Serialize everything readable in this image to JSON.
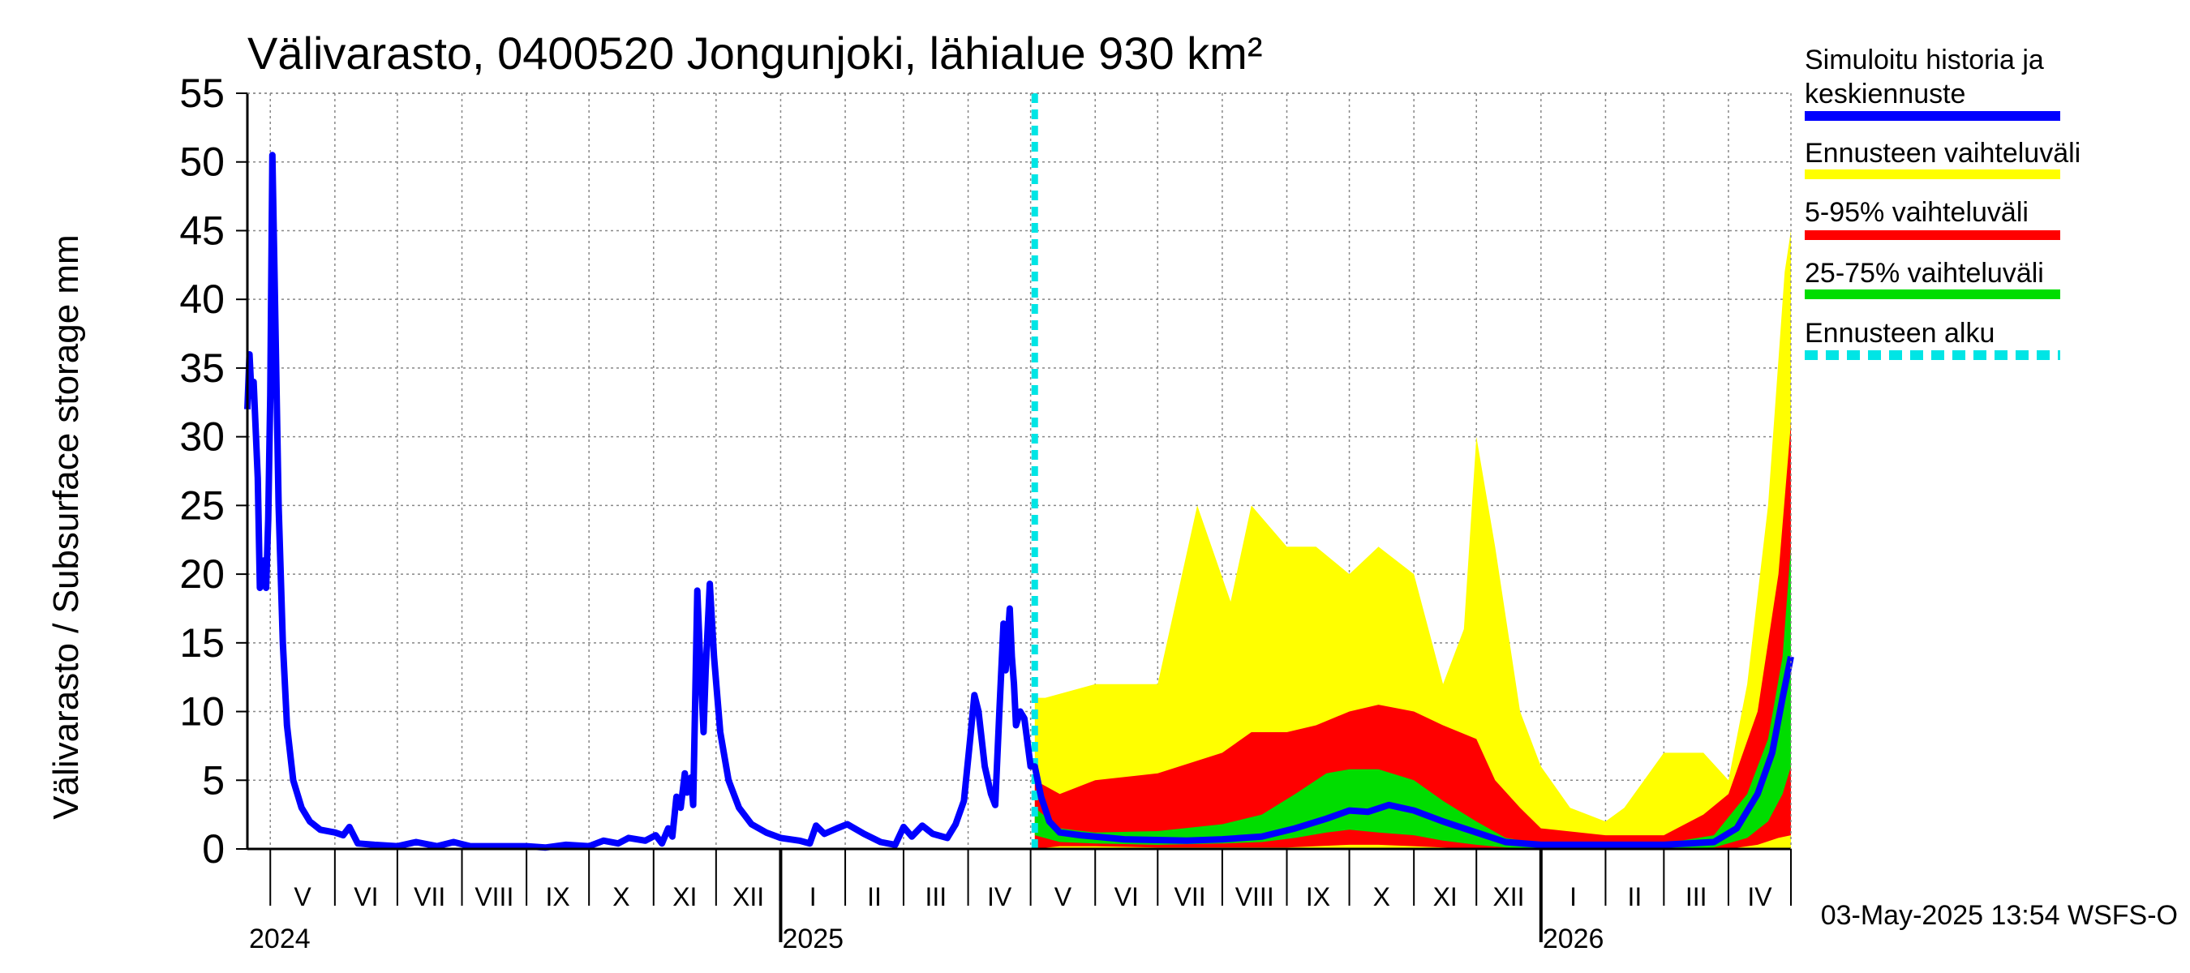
{
  "chart_data": {
    "type": "area",
    "title": "Välivarasto, 0400520 Jongunjoki, lähialue 930 km²",
    "ylabel": "Välivarasto / Subsurface storage  mm",
    "ylim": [
      0,
      55
    ],
    "yticks": [
      0,
      5,
      10,
      15,
      20,
      25,
      30,
      35,
      40,
      45,
      50,
      55
    ],
    "grid": true,
    "legend_position": "right",
    "x_start": "2024-04-20",
    "x_end": "2026-05-01",
    "forecast_start": "2025-05-03",
    "month_labels": [
      {
        "label": "V",
        "start": "2024-05-01"
      },
      {
        "label": "VI",
        "start": "2024-06-01"
      },
      {
        "label": "VII",
        "start": "2024-07-01"
      },
      {
        "label": "VIII",
        "start": "2024-08-01"
      },
      {
        "label": "IX",
        "start": "2024-09-01"
      },
      {
        "label": "X",
        "start": "2024-10-01"
      },
      {
        "label": "XI",
        "start": "2024-11-01"
      },
      {
        "label": "XII",
        "start": "2024-12-01"
      },
      {
        "label": "I",
        "start": "2025-01-01"
      },
      {
        "label": "II",
        "start": "2025-02-01"
      },
      {
        "label": "III",
        "start": "2025-03-01"
      },
      {
        "label": "IV",
        "start": "2025-04-01"
      },
      {
        "label": "V",
        "start": "2025-05-01"
      },
      {
        "label": "VI",
        "start": "2025-06-01"
      },
      {
        "label": "VII",
        "start": "2025-07-01"
      },
      {
        "label": "VIII",
        "start": "2025-08-01"
      },
      {
        "label": "IX",
        "start": "2025-09-01"
      },
      {
        "label": "X",
        "start": "2025-10-01"
      },
      {
        "label": "XI",
        "start": "2025-11-01"
      },
      {
        "label": "XII",
        "start": "2025-12-01"
      },
      {
        "label": "I",
        "start": "2026-01-01"
      },
      {
        "label": "II",
        "start": "2026-02-01"
      },
      {
        "label": "III",
        "start": "2026-03-01"
      },
      {
        "label": "IV",
        "start": "2026-04-01"
      }
    ],
    "year_labels": [
      {
        "label": "2024",
        "date": "2024-04-20"
      },
      {
        "label": "2025",
        "date": "2025-01-01"
      },
      {
        "label": "2026",
        "date": "2026-01-01"
      }
    ],
    "series": [
      {
        "name": "Simuloitu historia ja keskiennuste",
        "color": "#0000ff",
        "points": [
          [
            "2024-04-20",
            32
          ],
          [
            "2024-04-21",
            36
          ],
          [
            "2024-04-22",
            33
          ],
          [
            "2024-04-23",
            34
          ],
          [
            "2024-04-25",
            27
          ],
          [
            "2024-04-26",
            19
          ],
          [
            "2024-04-28",
            21
          ],
          [
            "2024-04-29",
            19
          ],
          [
            "2024-04-30",
            24
          ],
          [
            "2024-05-01",
            33
          ],
          [
            "2024-05-02",
            50.5
          ],
          [
            "2024-05-03",
            42
          ],
          [
            "2024-05-05",
            25
          ],
          [
            "2024-05-07",
            15
          ],
          [
            "2024-05-09",
            9
          ],
          [
            "2024-05-12",
            5
          ],
          [
            "2024-05-16",
            3
          ],
          [
            "2024-05-20",
            2
          ],
          [
            "2024-05-25",
            1.4
          ],
          [
            "2024-06-01",
            1.2
          ],
          [
            "2024-06-05",
            1
          ],
          [
            "2024-06-08",
            1.6
          ],
          [
            "2024-06-12",
            0.4
          ],
          [
            "2024-06-20",
            0.3
          ],
          [
            "2024-07-01",
            0.2
          ],
          [
            "2024-07-10",
            0.5
          ],
          [
            "2024-07-20",
            0.2
          ],
          [
            "2024-07-28",
            0.5
          ],
          [
            "2024-08-05",
            0.2
          ],
          [
            "2024-08-20",
            0.2
          ],
          [
            "2024-09-01",
            0.2
          ],
          [
            "2024-09-10",
            0.1
          ],
          [
            "2024-09-20",
            0.3
          ],
          [
            "2024-10-01",
            0.2
          ],
          [
            "2024-10-08",
            0.6
          ],
          [
            "2024-10-15",
            0.4
          ],
          [
            "2024-10-20",
            0.8
          ],
          [
            "2024-10-28",
            0.6
          ],
          [
            "2024-11-02",
            1
          ],
          [
            "2024-11-05",
            0.4
          ],
          [
            "2024-11-08",
            1.5
          ],
          [
            "2024-11-10",
            0.9
          ],
          [
            "2024-11-12",
            3.8
          ],
          [
            "2024-11-14",
            3
          ],
          [
            "2024-11-16",
            5.5
          ],
          [
            "2024-11-17",
            4.1
          ],
          [
            "2024-11-19",
            5.2
          ],
          [
            "2024-11-20",
            3.2
          ],
          [
            "2024-11-22",
            18.8
          ],
          [
            "2024-11-23",
            15
          ],
          [
            "2024-11-25",
            8.5
          ],
          [
            "2024-11-26",
            13
          ],
          [
            "2024-11-28",
            19.3
          ],
          [
            "2024-11-30",
            14
          ],
          [
            "2024-12-03",
            8.5
          ],
          [
            "2024-12-07",
            5
          ],
          [
            "2024-12-12",
            3
          ],
          [
            "2024-12-18",
            1.8
          ],
          [
            "2024-12-25",
            1.2
          ],
          [
            "2025-01-01",
            0.8
          ],
          [
            "2025-01-10",
            0.6
          ],
          [
            "2025-01-15",
            0.4
          ],
          [
            "2025-01-18",
            1.7
          ],
          [
            "2025-01-22",
            1.1
          ],
          [
            "2025-01-28",
            1.5
          ],
          [
            "2025-02-02",
            1.8
          ],
          [
            "2025-02-10",
            1.1
          ],
          [
            "2025-02-18",
            0.5
          ],
          [
            "2025-02-25",
            0.3
          ],
          [
            "2025-03-01",
            1.6
          ],
          [
            "2025-03-05",
            0.9
          ],
          [
            "2025-03-10",
            1.7
          ],
          [
            "2025-03-15",
            1.1
          ],
          [
            "2025-03-22",
            0.8
          ],
          [
            "2025-03-26",
            1.8
          ],
          [
            "2025-03-30",
            3.5
          ],
          [
            "2025-04-02",
            8
          ],
          [
            "2025-04-04",
            11.2
          ],
          [
            "2025-04-06",
            10
          ],
          [
            "2025-04-09",
            6
          ],
          [
            "2025-04-12",
            4
          ],
          [
            "2025-04-14",
            3.2
          ],
          [
            "2025-04-16",
            10
          ],
          [
            "2025-04-18",
            16.4
          ],
          [
            "2025-04-19",
            13
          ],
          [
            "2025-04-21",
            17.5
          ],
          [
            "2025-04-22",
            14
          ],
          [
            "2025-04-23",
            12
          ],
          [
            "2025-04-24",
            9
          ],
          [
            "2025-04-26",
            10
          ],
          [
            "2025-04-28",
            9.5
          ],
          [
            "2025-05-01",
            6
          ],
          [
            "2025-05-03",
            6
          ],
          [
            "2025-05-06",
            3.8
          ],
          [
            "2025-05-10",
            2
          ],
          [
            "2025-05-15",
            1.2
          ],
          [
            "2025-05-25",
            1
          ],
          [
            "2025-06-15",
            0.7
          ],
          [
            "2025-07-15",
            0.6
          ],
          [
            "2025-08-01",
            0.7
          ],
          [
            "2025-08-20",
            0.9
          ],
          [
            "2025-09-05",
            1.5
          ],
          [
            "2025-09-20",
            2.2
          ],
          [
            "2025-10-01",
            2.8
          ],
          [
            "2025-10-10",
            2.7
          ],
          [
            "2025-10-20",
            3.2
          ],
          [
            "2025-11-01",
            2.8
          ],
          [
            "2025-11-15",
            2
          ],
          [
            "2025-12-01",
            1.2
          ],
          [
            "2025-12-15",
            0.5
          ],
          [
            "2026-01-01",
            0.3
          ],
          [
            "2026-02-01",
            0.3
          ],
          [
            "2026-03-01",
            0.3
          ],
          [
            "2026-03-25",
            0.5
          ],
          [
            "2026-04-05",
            1.5
          ],
          [
            "2026-04-15",
            4
          ],
          [
            "2026-04-22",
            7
          ],
          [
            "2026-04-27",
            11
          ],
          [
            "2026-05-01",
            14
          ]
        ]
      },
      {
        "name": "Ennusteen vaihteluväli",
        "color": "#ffff00",
        "band": [
          [
            "2025-05-03",
            0,
            11
          ],
          [
            "2025-05-08",
            0,
            11
          ],
          [
            "2025-06-01",
            0,
            12
          ],
          [
            "2025-07-01",
            0,
            12
          ],
          [
            "2025-07-20",
            0,
            25
          ],
          [
            "2025-08-05",
            0,
            18
          ],
          [
            "2025-08-15",
            0,
            25
          ],
          [
            "2025-09-01",
            0,
            22
          ],
          [
            "2025-09-15",
            0,
            22
          ],
          [
            "2025-10-01",
            0,
            20
          ],
          [
            "2025-10-15",
            0,
            22
          ],
          [
            "2025-11-01",
            0,
            20
          ],
          [
            "2025-11-15",
            0,
            12
          ],
          [
            "2025-11-25",
            0,
            16
          ],
          [
            "2025-12-01",
            0,
            30
          ],
          [
            "2025-12-10",
            0,
            22
          ],
          [
            "2025-12-22",
            0,
            10
          ],
          [
            "2026-01-01",
            0,
            6
          ],
          [
            "2026-01-15",
            0,
            3
          ],
          [
            "2026-02-01",
            0,
            2
          ],
          [
            "2026-02-10",
            0,
            3
          ],
          [
            "2026-03-01",
            0,
            7
          ],
          [
            "2026-03-20",
            0,
            7
          ],
          [
            "2026-04-01",
            0,
            5
          ],
          [
            "2026-04-10",
            0,
            12
          ],
          [
            "2026-04-20",
            0,
            25
          ],
          [
            "2026-04-28",
            0,
            42
          ],
          [
            "2026-05-01",
            0,
            45
          ]
        ]
      },
      {
        "name": "5-95% vaihteluväli",
        "color": "#ff0000",
        "band": [
          [
            "2025-05-03",
            0,
            5
          ],
          [
            "2025-05-15",
            0.2,
            4
          ],
          [
            "2025-06-01",
            0.2,
            5
          ],
          [
            "2025-07-01",
            0.1,
            5.5
          ],
          [
            "2025-08-01",
            0.1,
            7
          ],
          [
            "2025-08-15",
            0.1,
            8.5
          ],
          [
            "2025-09-01",
            0.1,
            8.5
          ],
          [
            "2025-09-15",
            0.2,
            9
          ],
          [
            "2025-10-01",
            0.3,
            10
          ],
          [
            "2025-10-15",
            0.3,
            10.5
          ],
          [
            "2025-11-01",
            0.2,
            10
          ],
          [
            "2025-11-15",
            0.1,
            9
          ],
          [
            "2025-12-01",
            0,
            8
          ],
          [
            "2025-12-10",
            0,
            5
          ],
          [
            "2025-12-22",
            0,
            3
          ],
          [
            "2026-01-01",
            0,
            1.5
          ],
          [
            "2026-02-01",
            0,
            1
          ],
          [
            "2026-03-01",
            0,
            1
          ],
          [
            "2026-03-20",
            0,
            2.5
          ],
          [
            "2026-04-01",
            0,
            4
          ],
          [
            "2026-04-15",
            0.3,
            10
          ],
          [
            "2026-04-25",
            0.8,
            20
          ],
          [
            "2026-05-01",
            1,
            31
          ]
        ]
      },
      {
        "name": "25-75% vaihteluväli",
        "color": "#00dd00",
        "band": [
          [
            "2025-05-03",
            1,
            3
          ],
          [
            "2025-05-15",
            0.5,
            1.5
          ],
          [
            "2025-06-01",
            0.4,
            1.2
          ],
          [
            "2025-07-01",
            0.3,
            1.3
          ],
          [
            "2025-08-01",
            0.4,
            1.8
          ],
          [
            "2025-08-20",
            0.5,
            2.5
          ],
          [
            "2025-09-05",
            0.8,
            4
          ],
          [
            "2025-09-20",
            1.2,
            5.5
          ],
          [
            "2025-10-01",
            1.4,
            5.8
          ],
          [
            "2025-10-15",
            1.2,
            5.8
          ],
          [
            "2025-11-01",
            1,
            5
          ],
          [
            "2025-11-15",
            0.6,
            3.5
          ],
          [
            "2025-12-01",
            0.3,
            2
          ],
          [
            "2025-12-15",
            0.1,
            0.8
          ],
          [
            "2026-01-01",
            0,
            0.4
          ],
          [
            "2026-02-01",
            0,
            0.3
          ],
          [
            "2026-03-01",
            0,
            0.4
          ],
          [
            "2026-03-25",
            0.1,
            1
          ],
          [
            "2026-04-10",
            0.8,
            4
          ],
          [
            "2026-04-20",
            2,
            8
          ],
          [
            "2026-04-27",
            4,
            14
          ],
          [
            "2026-05-01",
            6,
            22
          ]
        ]
      },
      {
        "name": "Ennusteen alku",
        "color": "#00e5e5",
        "line_style": "dashed"
      }
    ]
  },
  "legend": {
    "items": [
      {
        "label_line1": "Simuloitu historia ja",
        "label_line2": "keskiennuste",
        "color": "#0000ff",
        "style": "solid"
      },
      {
        "label_line1": "Ennusteen vaihteluväli",
        "label_line2": "",
        "color": "#ffff00",
        "style": "solid"
      },
      {
        "label_line1": "5-95% vaihteluväli",
        "label_line2": "",
        "color": "#ff0000",
        "style": "solid"
      },
      {
        "label_line1": "25-75% vaihteluväli",
        "label_line2": "",
        "color": "#00dd00",
        "style": "solid"
      },
      {
        "label_line1": "Ennusteen alku",
        "label_line2": "",
        "color": "#00e5e5",
        "style": "dashed"
      }
    ]
  },
  "footer": "03-May-2025 13:54 WSFS-O"
}
